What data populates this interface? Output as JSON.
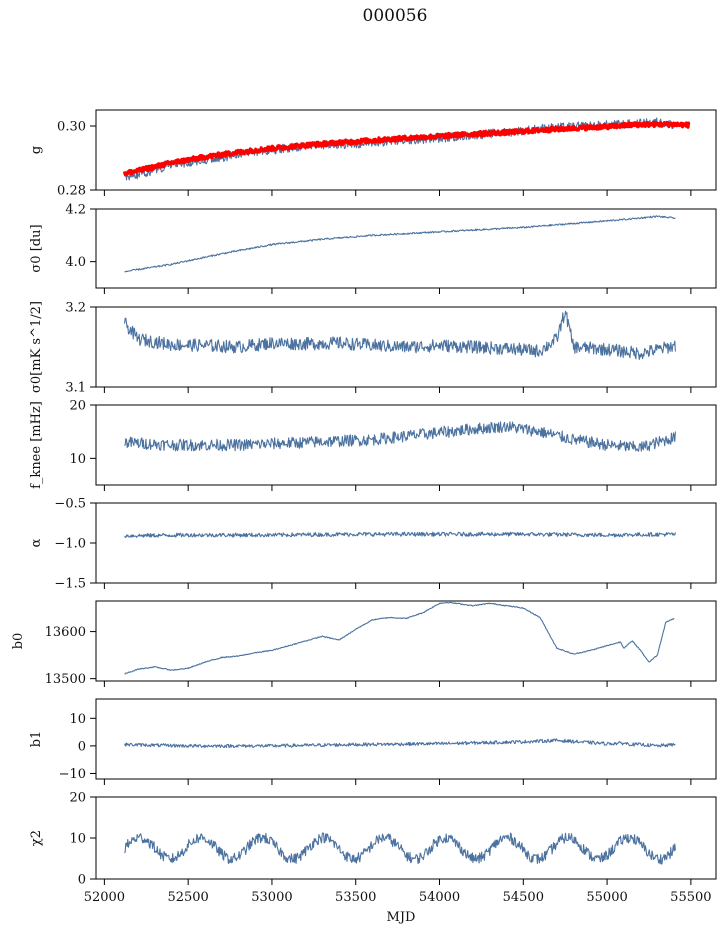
{
  "figure": {
    "title": "000056"
  },
  "chart_data": {
    "type": "line",
    "xlabel": "MJD",
    "xlim": [
      51950,
      55650
    ],
    "xticks": [
      "52000",
      "52500",
      "53000",
      "53500",
      "54000",
      "54500",
      "55000",
      "55500"
    ],
    "x_range": [
      52120,
      55410
    ],
    "colors": {
      "series": "#4c72a0",
      "model": "#ff0000",
      "axes": "#000000"
    },
    "panels": [
      {
        "ylabel": "g",
        "ylim": [
          0.28,
          0.305
        ],
        "yticks": [
          "0.28",
          "0.30"
        ],
        "series": [
          {
            "type": "line",
            "x": [
              52120,
              52200,
              52400,
              52600,
              52800,
              53000,
              53200,
              53400,
              53600,
              53800,
              54000,
              54200,
              54400,
              54600,
              54800,
              55000,
              55200,
              55300,
              55400
            ],
            "y": [
              0.2842,
              0.2848,
              0.2878,
              0.2895,
              0.291,
              0.2925,
              0.2938,
              0.2942,
              0.2948,
              0.2955,
              0.2962,
              0.2972,
              0.298,
              0.2992,
              0.2998,
              0.3003,
              0.3008,
              0.3012,
              0.3005
            ],
            "noise": 0.0014
          },
          {
            "type": "model-band",
            "name": "model",
            "x": [
              52120,
              52200,
              52400,
              52600,
              52800,
              53000,
              53200,
              53400,
              53600,
              53800,
              54000,
              54200,
              54400,
              54600,
              54800,
              55000,
              55200,
              55400,
              55490
            ],
            "y": [
              0.2852,
              0.286,
              0.2885,
              0.2903,
              0.2918,
              0.293,
              0.294,
              0.2948,
              0.2955,
              0.2962,
              0.2968,
              0.2975,
              0.298,
              0.2987,
              0.2993,
              0.2998,
              0.3005,
              0.3005,
              0.3003
            ],
            "noise": 0.0007
          }
        ]
      },
      {
        "ylabel": "σ0 [du]",
        "ylim": [
          3.9,
          4.2
        ],
        "yticks": [
          "4.0",
          "4.2"
        ],
        "series": [
          {
            "type": "line",
            "x": [
              52120,
              52400,
              52700,
              53000,
              53300,
              53600,
              53900,
              54200,
              54500,
              54800,
              55100,
              55300,
              55410
            ],
            "y": [
              3.962,
              3.99,
              4.03,
              4.065,
              4.085,
              4.1,
              4.11,
              4.12,
              4.13,
              4.145,
              4.16,
              4.172,
              4.165
            ],
            "noise": 0.003
          }
        ]
      },
      {
        "ylabel": "σ0[mK s^1/2]",
        "ylim": [
          3.1,
          3.2
        ],
        "yticks": [
          "3.1",
          "3.2"
        ],
        "series": [
          {
            "type": "line",
            "x": [
              52120,
              52200,
              52400,
              52600,
              52800,
              53000,
              53200,
              53400,
              53600,
              53800,
              54000,
              54200,
              54400,
              54600,
              54700,
              54750,
              54800,
              55000,
              55200,
              55410
            ],
            "y": [
              3.18,
              3.16,
              3.153,
              3.152,
              3.15,
              3.155,
              3.154,
              3.155,
              3.152,
              3.15,
              3.152,
              3.15,
              3.148,
              3.145,
              3.16,
              3.195,
              3.15,
              3.147,
              3.142,
              3.152
            ],
            "noise": 0.008
          }
        ]
      },
      {
        "ylabel": "f_knee [mHz]",
        "ylim": [
          5,
          20
        ],
        "yticks": [
          "10",
          "20"
        ],
        "series": [
          {
            "type": "line",
            "x": [
              52120,
              52400,
              52800,
              53200,
              53600,
              53900,
              54200,
              54400,
              54600,
              54800,
              55000,
              55200,
              55410
            ],
            "y": [
              13.0,
              12.5,
              12.5,
              13.0,
              13.5,
              14.5,
              15.5,
              16.0,
              15.0,
              13.5,
              12.5,
              12.0,
              14.0
            ],
            "noise": 1.1
          }
        ]
      },
      {
        "ylabel": "α",
        "ylim": [
          -1.5,
          -0.5
        ],
        "yticks": [
          "−1.5",
          "−1.0",
          "−0.5"
        ],
        "series": [
          {
            "type": "line",
            "x": [
              52120,
              52500,
              53000,
              53500,
              54000,
              54500,
              55000,
              55410
            ],
            "y": [
              -0.91,
              -0.9,
              -0.9,
              -0.89,
              -0.89,
              -0.89,
              -0.9,
              -0.89
            ],
            "noise": 0.025
          }
        ]
      },
      {
        "ylabel": "b0",
        "ylim": [
          13495,
          13665
        ],
        "yticks": [
          "13500",
          "13600"
        ],
        "series": [
          {
            "type": "line",
            "x": [
              52120,
              52200,
              52300,
              52400,
              52500,
              52600,
              52700,
              52800,
              52900,
              53000,
              53100,
              53200,
              53300,
              53400,
              53500,
              53600,
              53700,
              53800,
              53900,
              54000,
              54050,
              54100,
              54200,
              54300,
              54400,
              54500,
              54600,
              54700,
              54800,
              54900,
              55000,
              55050,
              55080,
              55100,
              55150,
              55200,
              55250,
              55300,
              55350,
              55400
            ],
            "y": [
              13510,
              13520,
              13525,
              13518,
              13522,
              13535,
              13545,
              13548,
              13555,
              13560,
              13570,
              13580,
              13590,
              13582,
              13605,
              13625,
              13630,
              13628,
              13640,
              13660,
              13662,
              13660,
              13655,
              13660,
              13655,
              13650,
              13630,
              13565,
              13552,
              13560,
              13570,
              13575,
              13578,
              13565,
              13580,
              13560,
              13535,
              13550,
              13620,
              13628
            ],
            "noise": 1.0
          }
        ]
      },
      {
        "ylabel": "b1",
        "ylim": [
          -12,
          17
        ],
        "yticks": [
          "−10",
          "0",
          "10"
        ],
        "series": [
          {
            "type": "line",
            "x": [
              52120,
              52500,
              53000,
              53500,
              54000,
              54500,
              54700,
              55000,
              55100,
              55150,
              55200,
              55300,
              55410
            ],
            "y": [
              0.5,
              0.0,
              0.0,
              0.5,
              0.8,
              1.5,
              2.0,
              0.8,
              1.0,
              0.5,
              0.5,
              0.0,
              0.5
            ],
            "noise": 0.6
          }
        ]
      },
      {
        "ylabel": "χ2",
        "ylim": [
          0,
          20
        ],
        "yticks": [
          "0",
          "10",
          "20"
        ],
        "series": [
          {
            "type": "line",
            "x": [
              52120,
              55410
            ],
            "y": [
              7.5,
              7.5
            ],
            "noise": 1.3,
            "oscillation": {
              "period_days": 365,
              "amplitude": 2.6
            }
          }
        ]
      }
    ]
  }
}
